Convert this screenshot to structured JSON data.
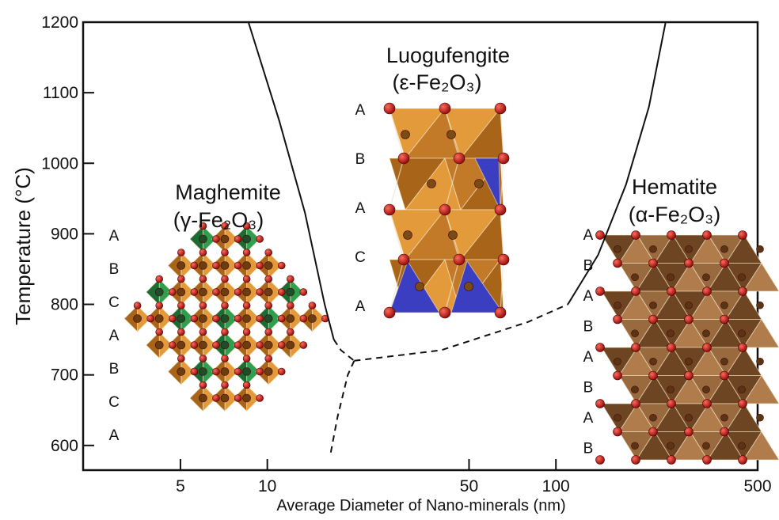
{
  "chart_data": {
    "type": "line",
    "xlabel": "Average Diameter of Nano-minerals (nm)",
    "ylabel": "Temperature (°C)",
    "x_scale": "log",
    "xlim": [
      2.3,
      500
    ],
    "ylim": [
      565,
      1200
    ],
    "x_ticks": [
      5,
      10,
      50,
      100,
      500
    ],
    "y_ticks": [
      600,
      700,
      800,
      900,
      1000,
      1100,
      1200
    ],
    "series": [
      {
        "line_style": "solid",
        "values": [
          [
            8.6,
            1200
          ],
          [
            11,
            1060
          ],
          [
            13.5,
            930
          ],
          [
            15.8,
            800
          ],
          [
            17,
            750
          ]
        ]
      },
      {
        "line_style": "dashed",
        "values": [
          [
            17,
            750
          ],
          [
            18,
            735
          ],
          [
            20,
            720
          ]
        ]
      },
      {
        "line_style": "dashed",
        "values": [
          [
            20,
            720
          ],
          [
            19,
            700
          ],
          [
            17.5,
            640
          ],
          [
            16.5,
            585
          ]
        ]
      },
      {
        "line_style": "dashed",
        "values": [
          [
            20,
            720
          ],
          [
            40,
            735
          ],
          [
            80,
            775
          ],
          [
            110,
            800
          ]
        ]
      },
      {
        "line_style": "solid",
        "values": [
          [
            110,
            800
          ],
          [
            140,
            870
          ],
          [
            175,
            970
          ],
          [
            210,
            1080
          ],
          [
            240,
            1200
          ]
        ]
      }
    ],
    "annotations": [
      {
        "name": "Maghemite",
        "formula": "(γ-Fe₂O₃)",
        "stacking": [
          "A",
          "B",
          "C",
          "A",
          "B",
          "C",
          "A"
        ]
      },
      {
        "name": "Luogufengite",
        "formula": "(ε-Fe₂O₃)",
        "stacking": [
          "A",
          "B",
          "A",
          "C",
          "A"
        ]
      },
      {
        "name": "Hematite",
        "formula": "(α-Fe₂O₃)",
        "stacking": [
          "A",
          "B",
          "A",
          "B",
          "A",
          "B",
          "A",
          "B"
        ]
      }
    ]
  },
  "colors": {
    "orange_face": "#e39a3a",
    "orange_dark": "#a86519",
    "green_face": "#2f9e4f",
    "green_dark": "#1d6b33",
    "blue_face": "#3b3ec0",
    "brown_face": "#9a6a3f",
    "brown_dark": "#6e4523",
    "oxygen": "#c21414"
  }
}
